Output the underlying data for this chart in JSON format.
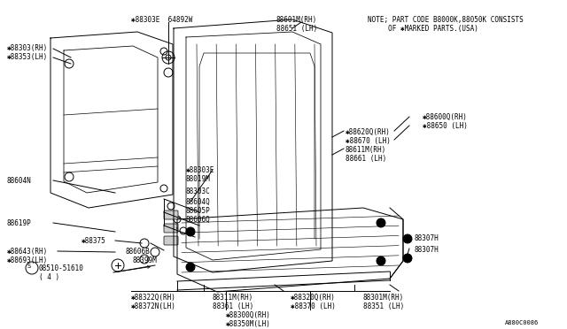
{
  "bg_color": "#ffffff",
  "line_color": "#000000",
  "note_line1": "NOTE; PART CODE B8000K,88050K CONSISTS",
  "note_line2": "     OF ✱MARKED PARTS.(USA)",
  "diagram_code": "A880C0086"
}
